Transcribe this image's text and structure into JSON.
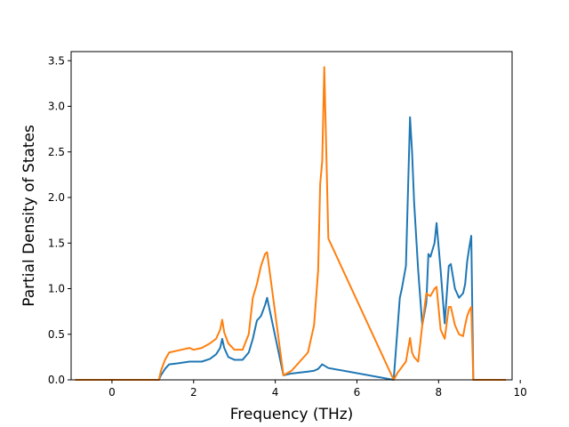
{
  "chart_data": {
    "type": "line",
    "title": "",
    "xlabel": "Frequency (THz)",
    "ylabel": "Partial Density of States",
    "xlim": [
      -1.0,
      9.8
    ],
    "ylim": [
      0.0,
      3.6
    ],
    "xticks": [
      0,
      2,
      4,
      6,
      8,
      10
    ],
    "yticks": [
      0.0,
      0.5,
      1.0,
      1.5,
      2.0,
      2.5,
      3.0,
      3.5
    ],
    "xtick_labels": [
      "0",
      "2",
      "4",
      "6",
      "8",
      "10"
    ],
    "ytick_labels": [
      "0.0",
      "0.5",
      "1.0",
      "1.5",
      "2.0",
      "2.5",
      "3.0",
      "3.5"
    ],
    "grid": false,
    "legend": "none",
    "series": [
      {
        "color": "#1f77b4",
        "x": [
          -0.9,
          1.15,
          1.2,
          1.3,
          1.4,
          1.6,
          1.9,
          2.2,
          2.4,
          2.55,
          2.65,
          2.7,
          2.75,
          2.85,
          3.0,
          3.2,
          3.35,
          3.45,
          3.55,
          3.65,
          3.75,
          3.8,
          4.2,
          4.4,
          4.8,
          4.95,
          5.05,
          5.15,
          5.3,
          6.9,
          7.0,
          7.05,
          7.1,
          7.2,
          7.3,
          7.35,
          7.4,
          7.5,
          7.6,
          7.7,
          7.75,
          7.8,
          7.9,
          7.95,
          8.05,
          8.15,
          8.25,
          8.3,
          8.4,
          8.5,
          8.6,
          8.65,
          8.7,
          8.75,
          8.8,
          8.85,
          9.65
        ],
        "y": [
          0.0,
          0.0,
          0.05,
          0.12,
          0.17,
          0.18,
          0.2,
          0.2,
          0.23,
          0.28,
          0.35,
          0.45,
          0.35,
          0.25,
          0.22,
          0.22,
          0.3,
          0.45,
          0.65,
          0.7,
          0.82,
          0.9,
          0.05,
          0.07,
          0.09,
          0.1,
          0.12,
          0.17,
          0.13,
          0.0,
          0.6,
          0.9,
          1.0,
          1.25,
          2.88,
          2.5,
          1.95,
          1.2,
          0.6,
          0.85,
          1.38,
          1.35,
          1.5,
          1.72,
          1.2,
          0.62,
          1.25,
          1.27,
          1.0,
          0.9,
          0.95,
          1.05,
          1.3,
          1.45,
          1.58,
          0.0,
          0.0
        ]
      },
      {
        "color": "#ff7f0e",
        "x": [
          -0.9,
          1.15,
          1.2,
          1.3,
          1.4,
          1.6,
          1.9,
          2.0,
          2.2,
          2.4,
          2.55,
          2.65,
          2.7,
          2.75,
          2.85,
          3.0,
          3.2,
          3.35,
          3.45,
          3.55,
          3.65,
          3.75,
          3.8,
          4.2,
          4.4,
          4.8,
          4.95,
          5.05,
          5.1,
          5.15,
          5.2,
          5.3,
          6.9,
          7.0,
          7.2,
          7.3,
          7.35,
          7.4,
          7.5,
          7.6,
          7.7,
          7.75,
          7.8,
          7.9,
          7.95,
          8.05,
          8.15,
          8.25,
          8.3,
          8.4,
          8.5,
          8.6,
          8.65,
          8.7,
          8.75,
          8.8,
          8.85,
          9.65
        ],
        "y": [
          0.0,
          0.0,
          0.1,
          0.22,
          0.3,
          0.32,
          0.35,
          0.33,
          0.35,
          0.4,
          0.45,
          0.55,
          0.66,
          0.52,
          0.4,
          0.33,
          0.33,
          0.5,
          0.9,
          1.05,
          1.25,
          1.38,
          1.4,
          0.05,
          0.1,
          0.3,
          0.6,
          1.2,
          2.15,
          2.4,
          3.43,
          1.55,
          0.0,
          0.08,
          0.2,
          0.46,
          0.3,
          0.25,
          0.2,
          0.6,
          0.95,
          0.93,
          0.92,
          1.0,
          1.02,
          0.55,
          0.45,
          0.8,
          0.8,
          0.6,
          0.5,
          0.48,
          0.6,
          0.7,
          0.76,
          0.8,
          0.0,
          0.0
        ]
      }
    ]
  }
}
